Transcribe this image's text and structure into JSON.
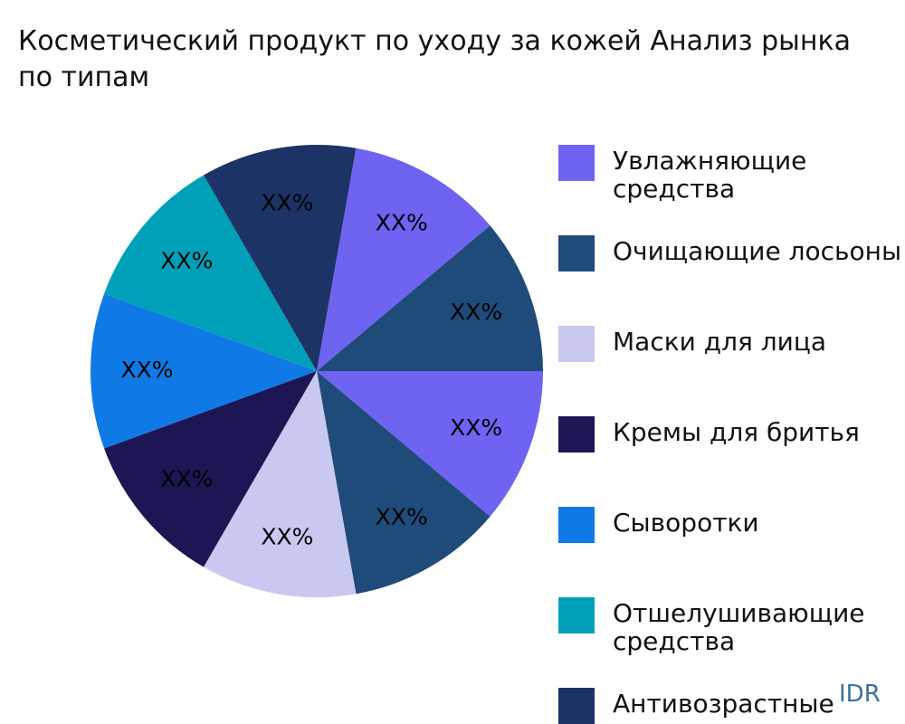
{
  "chart_data": {
    "type": "pie",
    "title": [
      "Косметический продукт по уходу за кожей Анализ рынка",
      "по типам"
    ],
    "categories": [
      "Увлажняющие средства",
      "Очищающие лосьоны",
      null,
      null,
      "Маски для лица",
      "Кремы для бритья",
      "Сыворотки",
      "Отшелушивающие средства",
      "Антивозрастные кремы"
    ],
    "values": [
      11.1,
      11.1,
      11.1,
      11.1,
      11.1,
      11.1,
      11.1,
      11.1,
      11.1
    ],
    "value_labels": [
      "XX%",
      "XX%",
      "XX%",
      "XX%",
      "XX%",
      "XX%",
      "XX%",
      "XX%",
      "XX%"
    ],
    "colors": [
      "#6f63f2",
      "#1f4b7a",
      "#6f63f2",
      "#1f4b7a",
      "#c8c8f0",
      "#1c1654",
      "#0f7ae6",
      "#00a0b8",
      "#1c3366"
    ],
    "watermark": "IDR"
  }
}
